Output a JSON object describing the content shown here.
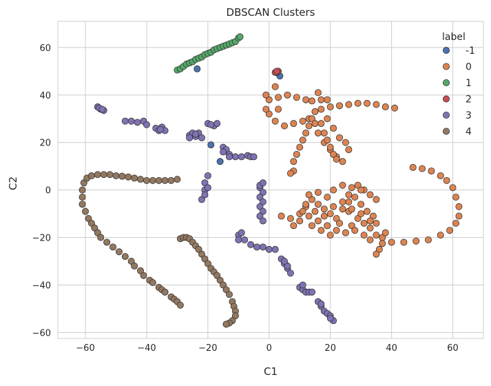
{
  "chart_data": {
    "type": "scatter",
    "title": "DBSCAN Clusters",
    "xlabel": "C1",
    "ylabel": "C2",
    "xlim": [
      -69,
      70
    ],
    "ylim": [
      -62.5,
      71
    ],
    "xticks": [
      -60,
      -40,
      -20,
      0,
      20,
      40,
      60
    ],
    "yticks": [
      -60,
      -40,
      -20,
      0,
      20,
      40,
      60
    ],
    "grid": true,
    "legend": {
      "title": "label",
      "placement": "top-right"
    },
    "series": [
      {
        "name": "-1",
        "color": "#4c72b0",
        "points": [
          [
            -23.5,
            51
          ],
          [
            3.5,
            48
          ],
          [
            -19,
            19
          ],
          [
            -16,
            12
          ],
          [
            2.5,
            49.5
          ]
        ]
      },
      {
        "name": "0",
        "color": "#dd8452",
        "points": [
          [
            0,
            38
          ],
          [
            3,
            39
          ],
          [
            6,
            40
          ],
          [
            9,
            39
          ],
          [
            12,
            38
          ],
          [
            14,
            37.5
          ],
          [
            17,
            38
          ],
          [
            19,
            38
          ],
          [
            0,
            32
          ],
          [
            2,
            29
          ],
          [
            5,
            27
          ],
          [
            8,
            28
          ],
          [
            11,
            29
          ],
          [
            13,
            30
          ],
          [
            15,
            33
          ],
          [
            17,
            34
          ],
          [
            20,
            35
          ],
          [
            23,
            35.5
          ],
          [
            26,
            36
          ],
          [
            29,
            36.5
          ],
          [
            32,
            36.5
          ],
          [
            35,
            36
          ],
          [
            38,
            35
          ],
          [
            41,
            34.5
          ],
          [
            -1,
            40
          ],
          [
            -1,
            34
          ],
          [
            3,
            34
          ],
          [
            2,
            43.5
          ],
          [
            16,
            41
          ],
          [
            14,
            30
          ],
          [
            13,
            27
          ],
          [
            12,
            24
          ],
          [
            11,
            21
          ],
          [
            10,
            18
          ],
          [
            9,
            15
          ],
          [
            8,
            12
          ],
          [
            8,
            8
          ],
          [
            7,
            7
          ],
          [
            15,
            28
          ],
          [
            16,
            24
          ],
          [
            18,
            20
          ],
          [
            20,
            17
          ],
          [
            22,
            14
          ],
          [
            24,
            12
          ],
          [
            19,
            30
          ],
          [
            21,
            26
          ],
          [
            23,
            22
          ],
          [
            25,
            20
          ],
          [
            26,
            17
          ],
          [
            17,
            28
          ],
          [
            18,
            24
          ],
          [
            19,
            21
          ],
          [
            20,
            18
          ],
          [
            21,
            15
          ],
          [
            22,
            13
          ],
          [
            47,
            9.5
          ],
          [
            50,
            9
          ],
          [
            53,
            8
          ],
          [
            56,
            6
          ],
          [
            58,
            4
          ],
          [
            60,
            1
          ],
          [
            61,
            -3
          ],
          [
            62,
            -7
          ],
          [
            62,
            -11
          ],
          [
            61,
            -14
          ],
          [
            59,
            -17
          ],
          [
            56,
            -19
          ],
          [
            52,
            -21
          ],
          [
            48,
            -21.5
          ],
          [
            44,
            -22
          ],
          [
            40,
            -22
          ],
          [
            37,
            -22.5
          ],
          [
            36,
            -25
          ],
          [
            35,
            -27
          ],
          [
            37,
            -20
          ],
          [
            38,
            -18
          ],
          [
            4,
            -11
          ],
          [
            7,
            -12
          ],
          [
            10,
            -10
          ],
          [
            12,
            -7
          ],
          [
            14,
            -4
          ],
          [
            16,
            -6
          ],
          [
            18,
            -8
          ],
          [
            20,
            -10
          ],
          [
            22,
            -12
          ],
          [
            24,
            -8
          ],
          [
            26,
            -5
          ],
          [
            28,
            -3
          ],
          [
            30,
            -6
          ],
          [
            32,
            -9
          ],
          [
            34,
            -11
          ],
          [
            35,
            -14
          ],
          [
            33,
            -16
          ],
          [
            31,
            -14
          ],
          [
            29,
            -12
          ],
          [
            27,
            -15
          ],
          [
            25,
            -18
          ],
          [
            22,
            -17
          ],
          [
            19,
            -15
          ],
          [
            16,
            -13
          ],
          [
            13,
            -11
          ],
          [
            10,
            -13
          ],
          [
            8,
            -15
          ],
          [
            13,
            -2
          ],
          [
            16,
            -1
          ],
          [
            19,
            -3
          ],
          [
            21,
            0
          ],
          [
            24,
            2
          ],
          [
            27,
            1
          ],
          [
            29,
            2
          ],
          [
            31,
            0
          ],
          [
            33,
            -2
          ],
          [
            35,
            -4
          ],
          [
            11,
            -9
          ],
          [
            14,
            -15
          ],
          [
            17,
            -17
          ],
          [
            20,
            -19
          ],
          [
            23,
            -14
          ],
          [
            26,
            -9
          ],
          [
            28,
            -17
          ],
          [
            31,
            -19
          ],
          [
            33,
            -21
          ],
          [
            35,
            -19
          ],
          [
            12,
            -6
          ],
          [
            15,
            -9
          ],
          [
            18,
            -11
          ],
          [
            21,
            -7
          ],
          [
            24,
            -5
          ],
          [
            27,
            -8
          ],
          [
            30,
            -10
          ],
          [
            33,
            -13
          ],
          [
            30,
            0
          ],
          [
            26,
            -2
          ]
        ]
      },
      {
        "name": "1",
        "color": "#55a868",
        "points": [
          [
            -30,
            50.5
          ],
          [
            -29,
            51
          ],
          [
            -28,
            52
          ],
          [
            -27,
            53
          ],
          [
            -26,
            53.5
          ],
          [
            -25,
            54
          ],
          [
            -24,
            55
          ],
          [
            -23,
            55.5
          ],
          [
            -22,
            56
          ],
          [
            -21,
            57
          ],
          [
            -20,
            57.5
          ],
          [
            -19,
            58
          ],
          [
            -18,
            59
          ],
          [
            -17,
            59.5
          ],
          [
            -16,
            60
          ],
          [
            -15,
            60.5
          ],
          [
            -14,
            61
          ],
          [
            -13,
            61.5
          ],
          [
            -12,
            62
          ],
          [
            -11,
            62.5
          ],
          [
            -10,
            64
          ],
          [
            -9.5,
            64.5
          ]
        ]
      },
      {
        "name": "2",
        "color": "#c44e52",
        "points": [
          [
            2,
            49.5
          ],
          [
            3,
            50
          ],
          [
            2.5,
            50
          ]
        ]
      },
      {
        "name": "3",
        "color": "#8172b3",
        "points": [
          [
            -56,
            35
          ],
          [
            -55,
            34
          ],
          [
            -54,
            33.5
          ],
          [
            -55.5,
            34.5
          ],
          [
            -54.5,
            34
          ],
          [
            -47,
            29
          ],
          [
            -45,
            29
          ],
          [
            -43,
            28.5
          ],
          [
            -41,
            29
          ],
          [
            -40,
            27.5
          ],
          [
            -37,
            26
          ],
          [
            -36,
            25
          ],
          [
            -35,
            26.5
          ],
          [
            -34,
            25
          ],
          [
            -35.5,
            25.5
          ],
          [
            -26,
            23
          ],
          [
            -25,
            24
          ],
          [
            -24,
            22.5
          ],
          [
            -23,
            24
          ],
          [
            -22,
            22
          ],
          [
            -26,
            22
          ],
          [
            -24,
            23.5
          ],
          [
            -20,
            28
          ],
          [
            -18,
            27
          ],
          [
            -17,
            28
          ],
          [
            -19,
            27.5
          ],
          [
            -15,
            18
          ],
          [
            -14,
            17
          ],
          [
            -13,
            15
          ],
          [
            -11,
            14
          ],
          [
            -9,
            14
          ],
          [
            -7,
            14.5
          ],
          [
            -6,
            14
          ],
          [
            -5,
            14
          ],
          [
            -13,
            14
          ],
          [
            -15,
            16
          ],
          [
            -22,
            -4
          ],
          [
            -21,
            0
          ],
          [
            -21,
            3
          ],
          [
            -20,
            6
          ],
          [
            -21,
            -2
          ],
          [
            -20,
            1
          ],
          [
            -3,
            1
          ],
          [
            -2,
            -1
          ],
          [
            -3,
            -3
          ],
          [
            -2,
            -5
          ],
          [
            -3,
            -7
          ],
          [
            -2,
            -9
          ],
          [
            -3,
            -11
          ],
          [
            -2,
            -13
          ],
          [
            -3,
            2
          ],
          [
            -2,
            3
          ],
          [
            -10,
            -19
          ],
          [
            -8,
            -21
          ],
          [
            -6,
            -23
          ],
          [
            -4,
            -24
          ],
          [
            -2,
            -24
          ],
          [
            0,
            -25
          ],
          [
            2,
            -25
          ],
          [
            -10,
            -21
          ],
          [
            -9,
            -18
          ],
          [
            4,
            -29
          ],
          [
            5,
            -31
          ],
          [
            6,
            -33
          ],
          [
            7,
            -35
          ],
          [
            6,
            -32
          ],
          [
            5,
            -30
          ],
          [
            10,
            -41
          ],
          [
            11,
            -42
          ],
          [
            12,
            -43
          ],
          [
            13,
            -43
          ],
          [
            14,
            -43
          ],
          [
            11,
            -40
          ],
          [
            16,
            -47
          ],
          [
            17,
            -49
          ],
          [
            18,
            -51
          ],
          [
            19,
            -52
          ],
          [
            20,
            -53
          ],
          [
            21,
            -55
          ],
          [
            20,
            -54
          ],
          [
            17,
            -48
          ]
        ]
      },
      {
        "name": "4",
        "color": "#937860",
        "points": [
          [
            -61,
            0
          ],
          [
            -60.5,
            3
          ],
          [
            -59.5,
            5
          ],
          [
            -58,
            6
          ],
          [
            -56,
            6.5
          ],
          [
            -54,
            6.5
          ],
          [
            -52,
            6.5
          ],
          [
            -50,
            6
          ],
          [
            -48,
            5.8
          ],
          [
            -46,
            5.5
          ],
          [
            -44,
            5
          ],
          [
            -42,
            4.5
          ],
          [
            -40,
            4
          ],
          [
            -38,
            4
          ],
          [
            -36,
            4
          ],
          [
            -34,
            4
          ],
          [
            -32,
            4
          ],
          [
            -30,
            4.5
          ],
          [
            -61,
            -3
          ],
          [
            -61,
            -6
          ],
          [
            -60,
            -9
          ],
          [
            -59,
            -12
          ],
          [
            -58,
            -14
          ],
          [
            -57,
            -16
          ],
          [
            -56,
            -18
          ],
          [
            -55,
            -20
          ],
          [
            -53,
            -22
          ],
          [
            -51,
            -24
          ],
          [
            -49,
            -26
          ],
          [
            -47,
            -28
          ],
          [
            -45,
            -30
          ],
          [
            -44,
            -32
          ],
          [
            -42,
            -34
          ],
          [
            -41,
            -36
          ],
          [
            -39,
            -38
          ],
          [
            -38,
            -39
          ],
          [
            -36,
            -41
          ],
          [
            -35,
            -42
          ],
          [
            -34,
            -43
          ],
          [
            -32,
            -45
          ],
          [
            -31,
            -46
          ],
          [
            -30,
            -47
          ],
          [
            -29,
            -48.5
          ],
          [
            -29,
            -20.5
          ],
          [
            -28,
            -20
          ],
          [
            -27,
            -20
          ],
          [
            -26,
            -20.5
          ],
          [
            -25,
            -22
          ],
          [
            -24,
            -23.5
          ],
          [
            -23,
            -25
          ],
          [
            -22,
            -27
          ],
          [
            -21,
            -29
          ],
          [
            -20,
            -31
          ],
          [
            -19,
            -33
          ],
          [
            -18,
            -34.5
          ],
          [
            -17,
            -36
          ],
          [
            -16,
            -38
          ],
          [
            -15,
            -40
          ],
          [
            -14,
            -42
          ],
          [
            -13,
            -44
          ],
          [
            -12,
            -47
          ],
          [
            -11.5,
            -49
          ],
          [
            -11,
            -51
          ],
          [
            -11,
            -53
          ],
          [
            -12,
            -55
          ],
          [
            -13,
            -56
          ],
          [
            -14,
            -56.5
          ]
        ]
      }
    ]
  }
}
